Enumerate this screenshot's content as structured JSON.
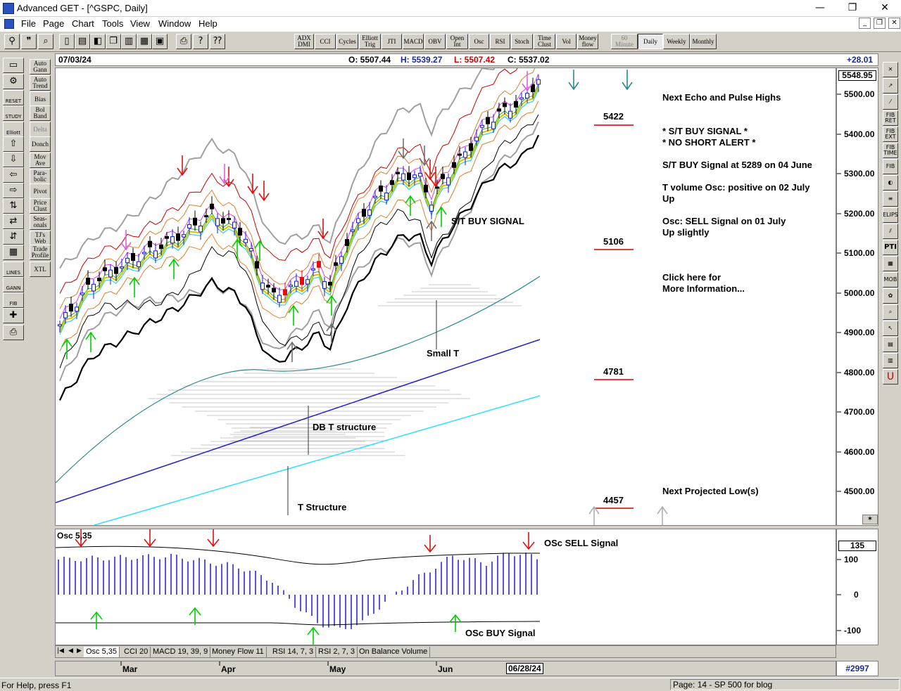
{
  "window": {
    "title": "Advanced GET - [^GSPC, Daily]",
    "minimize": "—",
    "restore": "❐",
    "close": "✕"
  },
  "menu": [
    "File",
    "Page",
    "Chart",
    "Tools",
    "View",
    "Window",
    "Help"
  ],
  "mdi": {
    "minimize": "_",
    "restore": "❐",
    "close": "✕"
  },
  "toolbar": {
    "studies": [
      {
        "label": "ADX\nDMI"
      },
      {
        "label": "CCI"
      },
      {
        "label": "Cycles"
      },
      {
        "label": "Elliott\nTrig"
      },
      {
        "label": "JTI"
      },
      {
        "label": "MACD"
      },
      {
        "label": "OBV"
      },
      {
        "label": "Open\nInt"
      },
      {
        "label": "Osc"
      },
      {
        "label": "RSI"
      },
      {
        "label": "Stoch"
      },
      {
        "label": "Time\nClust"
      },
      {
        "label": "Vol"
      },
      {
        "label": "Money\nflow"
      }
    ],
    "timeframes": [
      {
        "label": "60\nMinute",
        "state": "disabled"
      },
      {
        "label": "Daily",
        "state": "active"
      },
      {
        "label": "Weekly",
        "state": "normal"
      },
      {
        "label": "Monthly",
        "state": "normal"
      }
    ]
  },
  "lefttools": {
    "col_b": [
      {
        "label": "Auto\nGann"
      },
      {
        "label": "Auto\nTrend"
      },
      {
        "label": "Bias"
      },
      {
        "label": "Bol\nBand"
      },
      {
        "label": "Delta"
      },
      {
        "label": "Donch"
      },
      {
        "label": "Mov\nAve"
      },
      {
        "label": "Para-\nbolic"
      },
      {
        "label": "Pivot"
      },
      {
        "label": "Price\nClust"
      },
      {
        "label": "Seas-\nonals"
      },
      {
        "label": "TJ's\nWeb"
      },
      {
        "label": "Trade\nProfile"
      },
      {
        "label": "XTL"
      }
    ],
    "col_a": [
      {
        "label": ""
      },
      {
        "label": ""
      },
      {
        "label": "RESET"
      },
      {
        "label": "STUDY"
      },
      {
        "label": "Elliott"
      },
      {
        "label": ""
      },
      {
        "label": ""
      },
      {
        "label": ""
      },
      {
        "label": ""
      },
      {
        "label": ""
      },
      {
        "label": ""
      },
      {
        "label": ""
      },
      {
        "label": ""
      },
      {
        "label": "LINES"
      },
      {
        "label": "GANN"
      },
      {
        "label": "FIB"
      },
      {
        "label": ""
      }
    ]
  },
  "righttools": [
    {
      "label": "✕"
    },
    {
      "label": "↗"
    },
    {
      "label": "⁄"
    },
    {
      "label": "FIB\nRET"
    },
    {
      "label": "FIB\nEXT"
    },
    {
      "label": "FIB\nTIME"
    },
    {
      "label": "FIB"
    },
    {
      "label": "◐"
    },
    {
      "label": "≡"
    },
    {
      "label": "ELIPS"
    },
    {
      "label": "⫽"
    },
    {
      "label": "PTI"
    },
    {
      "label": "▦"
    },
    {
      "label": "MOB"
    },
    {
      "label": "✿"
    },
    {
      "label": "⌕"
    },
    {
      "label": "↖"
    },
    {
      "label": "▤"
    },
    {
      "label": "▥"
    },
    {
      "label": "U"
    }
  ],
  "info": {
    "date": "07/03/24",
    "open": "O: 5507.44",
    "high": "H: 5539.27",
    "low": "L: 5507.42",
    "close": "C: 5537.02",
    "change": "+28.01"
  },
  "pricescale": {
    "current": "5548.95",
    "labels": [
      "5500.00",
      "5400.00",
      "5300.00",
      "5200.00",
      "5100.00",
      "5000.00",
      "4900.00",
      "4800.00",
      "4700.00",
      "4600.00",
      "4500.00"
    ]
  },
  "annotations": {
    "echo_title": "Next Echo and Pulse Highs",
    "buy_signal": "* S/T BUY SIGNAL *",
    "no_short": "* NO SHORT ALERT *",
    "st_buy_detail": "S/T BUY Signal at 5289 on 04 June",
    "tvol_1": "T volume Osc: positive on 02 July",
    "tvol_2": "Up",
    "osc_1": "Osc: SELL Signal on 01 July",
    "osc_2": "Up slightly",
    "click_1": "Click here for",
    "click_2": "More Information...",
    "next_low": "Next Projected Low(s)",
    "level_5422": "5422",
    "level_5106": "5106",
    "level_4781": "4781",
    "level_4457": "4457",
    "st_buy_chart": "S/T BUY SIGNAL",
    "small_t": "Small T",
    "db_t": "DB T structure",
    "t_structure": "T Structure"
  },
  "osc": {
    "title": "Osc 5,35",
    "sell_label": "OSc SELL Signal",
    "buy_label": "OSc BUY Signal",
    "current": "135",
    "scale": [
      "100",
      "0",
      "-100"
    ]
  },
  "tabs": [
    "Osc 5,35",
    "CCI 20",
    "MACD 19, 39, 9",
    "Money Flow 11",
    "RSI 14, 7, 3",
    "RSI 2, 7, 3",
    "On Balance Volume"
  ],
  "datebar": {
    "months": [
      "Mar",
      "Apr",
      "May",
      "Jun"
    ],
    "cursor_date": "06/28/24",
    "bar_count": "#2997"
  },
  "status": {
    "help": "For Help, press F1",
    "page": "Page: 14 - SP 500 for blog"
  },
  "colors": {
    "up_bar": "#1a1acc",
    "down_bar": "#e01010",
    "buy_arrow": "#00d000",
    "sell_arrow": "#e01010",
    "signal_line": "#cc0000",
    "osc_bar": "#1a1acc"
  }
}
